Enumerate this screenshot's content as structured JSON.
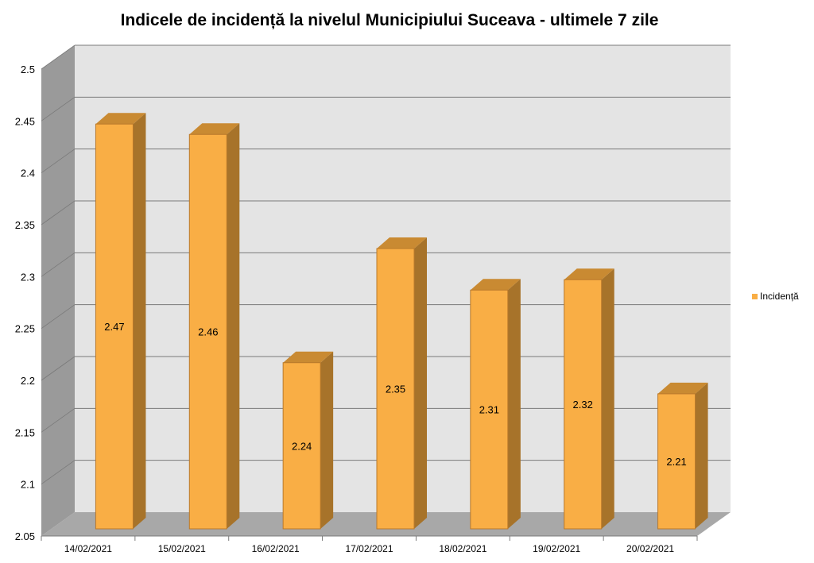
{
  "chart_data": {
    "type": "bar",
    "title": "Indicele de incidență la nivelul Municipiului Suceava - ultimele 7 zile",
    "categories": [
      "14/02/2021",
      "15/02/2021",
      "16/02/2021",
      "17/02/2021",
      "18/02/2021",
      "19/02/2021",
      "20/02/2021"
    ],
    "series": [
      {
        "name": "Incidență",
        "values": [
          2.47,
          2.46,
          2.24,
          2.35,
          2.31,
          2.32,
          2.21
        ]
      }
    ],
    "value_labels": [
      "2.47",
      "2.46",
      "2.24",
      "2.35",
      "2.31",
      "2.32",
      "2.21"
    ],
    "y_ticks": [
      "2.05",
      "2.1",
      "2.15",
      "2.2",
      "2.25",
      "2.3",
      "2.35",
      "2.4",
      "2.45",
      "2.5"
    ],
    "ylim": [
      2.05,
      2.5
    ],
    "grid": true,
    "legend_position": "right",
    "style": "3d-column",
    "colors": {
      "bar_front": "#F9AE45",
      "bar_side": "#A7732A",
      "bar_top": "#C98A32",
      "bar_edge": "#B9792B",
      "wall": "#E4E4E4",
      "side_wall": "#9A9A9A",
      "floor": "#A8A8A8",
      "gridline": "#7A7A7A"
    }
  }
}
